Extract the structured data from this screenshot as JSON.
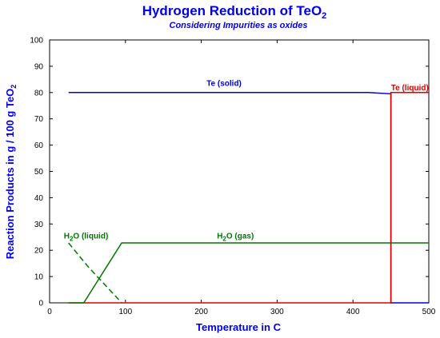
{
  "chart_data": {
    "type": "line",
    "title": "Hydrogen Reduction of TeO",
    "title_sub": "2",
    "subtitle": "Considering Impurities as oxides",
    "xlabel": "Temperature in C",
    "ylabel_main": "Reaction Products in g / 100 g TeO",
    "ylabel_sub": "2",
    "xlim": [
      0,
      500
    ],
    "ylim": [
      0,
      100
    ],
    "xticks": [
      0,
      100,
      200,
      300,
      400,
      500
    ],
    "yticks": [
      0,
      10,
      20,
      30,
      40,
      50,
      60,
      70,
      80,
      90,
      100
    ],
    "grid": false,
    "colors": {
      "axis_text": "#0000ee",
      "te_solid": "#0000dd",
      "te_liquid": "#dd0000",
      "water": "#007700"
    },
    "series": [
      {
        "key": "te_solid",
        "name": "Te (solid)",
        "color": "#0000dd",
        "style": "solid",
        "points": [
          [
            25,
            80
          ],
          [
            420,
            80
          ],
          [
            450,
            79.5
          ],
          [
            450,
            0
          ],
          [
            500,
            0
          ]
        ]
      },
      {
        "key": "te_liquid",
        "name": "Te (liquid)",
        "color": "#dd0000",
        "style": "solid",
        "points": [
          [
            25,
            0
          ],
          [
            450,
            0
          ],
          [
            450,
            80
          ],
          [
            500,
            80
          ]
        ]
      },
      {
        "key": "h2o_gas",
        "name_main": "H",
        "name_sub": "2",
        "name_rest": "O (gas)",
        "color": "#007700",
        "style": "solid",
        "points": [
          [
            25,
            0
          ],
          [
            45,
            0
          ],
          [
            95,
            22.8
          ],
          [
            500,
            22.8
          ]
        ]
      },
      {
        "key": "h2o_liquid",
        "name_main": "H",
        "name_sub": "2",
        "name_rest": "O (liquid)",
        "color": "#007700",
        "style": "dashed",
        "points": [
          [
            25,
            22.8
          ],
          [
            50,
            14
          ],
          [
            95,
            0
          ]
        ]
      }
    ],
    "annotations": [
      {
        "series": "te_solid",
        "text": "Te (solid)",
        "x": 230,
        "y": 82.5
      },
      {
        "series": "te_liquid",
        "text": "Te (liquid)",
        "x": 475,
        "y": 80.8
      },
      {
        "series": "h2o_gas",
        "text_main": "H",
        "text_sub": "2",
        "text_rest": "O (gas)",
        "x": 245,
        "y": 24.5
      },
      {
        "series": "h2o_liquid",
        "text_main": "H",
        "text_sub": "2",
        "text_rest": "O (liquid)",
        "x": 48,
        "y": 24.5
      }
    ]
  }
}
